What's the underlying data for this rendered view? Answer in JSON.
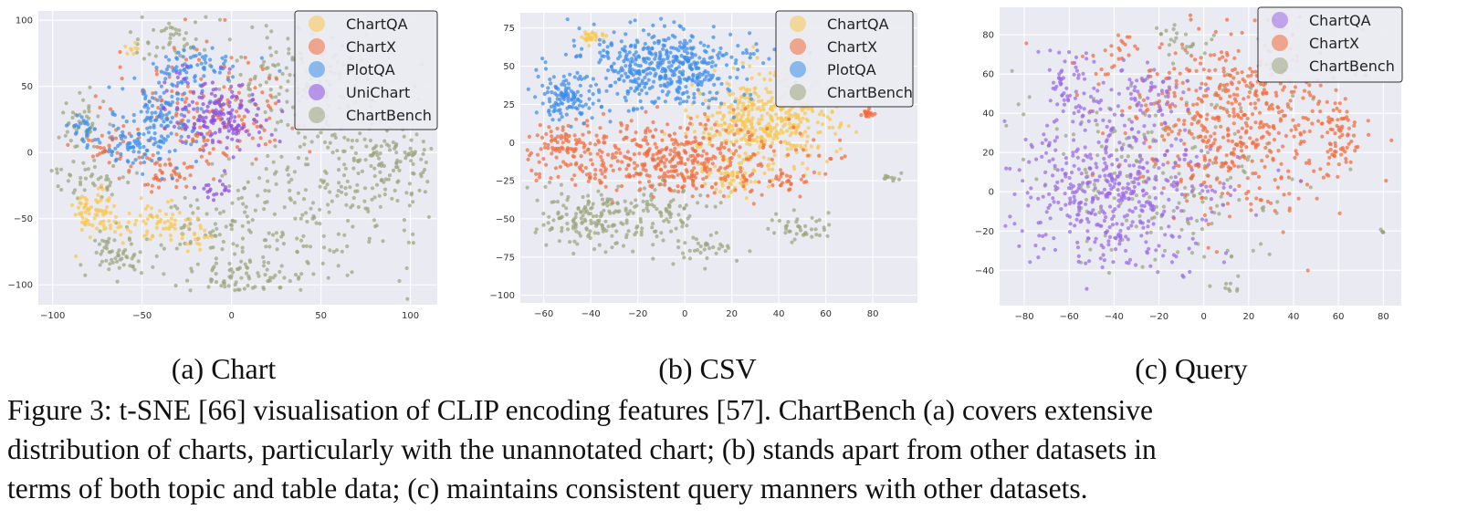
{
  "colors": {
    "ChartQA": "#f9c74f",
    "ChartX": "#f26b3a",
    "PlotQA": "#3b8eea",
    "UniChart": "#8b4fe0",
    "ChartBench": "#9aa57c",
    "ChartQA_query": "#9b6ae6",
    "background": "#eaeaf2"
  },
  "chart_data": [
    {
      "type": "scatter",
      "panel_label": "(a) Chart",
      "xticks": [
        "−100",
        "−50",
        "0",
        "50",
        "100"
      ],
      "yticks": [
        "100",
        "50",
        "0",
        "−50",
        "−100"
      ],
      "xlim": [
        -108,
        115
      ],
      "ylim": [
        -115,
        107
      ],
      "grid": true,
      "legend_placement": "top-right",
      "legend": [
        "ChartQA",
        "ChartX",
        "PlotQA",
        "UniChart",
        "ChartBench"
      ],
      "series": [
        {
          "name": "ChartBench",
          "clusters": [
            [
              60,
              -20,
              35,
              45,
              0.32
            ],
            [
              -5,
              -60,
              30,
              25,
              0.14
            ],
            [
              35,
              60,
              25,
              25,
              0.12
            ],
            [
              -65,
              -75,
              10,
              12,
              0.06
            ],
            [
              -85,
              20,
              8,
              15,
              0.05
            ],
            [
              95,
              -10,
              10,
              15,
              0.05
            ],
            [
              -35,
              85,
              15,
              10,
              0.05
            ],
            [
              10,
              -95,
              20,
              8,
              0.06
            ],
            [
              -80,
              -20,
              15,
              10,
              0.05
            ]
          ],
          "count": 900
        },
        {
          "name": "ChartQA",
          "clusters": [
            [
              -75,
              -45,
              10,
              12,
              0.5
            ],
            [
              -40,
              -52,
              12,
              8,
              0.35
            ],
            [
              -55,
              78,
              3,
              3,
              0.05
            ],
            [
              -20,
              -65,
              6,
              5,
              0.1
            ]
          ],
          "count": 160
        },
        {
          "name": "ChartX",
          "clusters": [
            [
              -15,
              30,
              35,
              30,
              0.75
            ],
            [
              -40,
              -15,
              15,
              10,
              0.15
            ],
            [
              -70,
              5,
              8,
              10,
              0.1
            ]
          ],
          "count": 240
        },
        {
          "name": "PlotQA",
          "clusters": [
            [
              -40,
              25,
              15,
              25,
              0.55
            ],
            [
              -20,
              65,
              15,
              8,
              0.2
            ],
            [
              -80,
              15,
              8,
              8,
              0.1
            ],
            [
              -55,
              5,
              10,
              8,
              0.15
            ]
          ],
          "count": 280
        },
        {
          "name": "UniChart",
          "clusters": [
            [
              -5,
              28,
              18,
              15,
              0.8
            ],
            [
              -25,
              50,
              10,
              10,
              0.1
            ],
            [
              -10,
              -30,
              6,
              5,
              0.1
            ]
          ],
          "count": 190
        }
      ]
    },
    {
      "type": "scatter",
      "panel_label": "(b) CSV",
      "xticks": [
        "−60",
        "−40",
        "−20",
        "0",
        "20",
        "40",
        "60",
        "80"
      ],
      "yticks": [
        "75",
        "50",
        "25",
        "0",
        "−25",
        "−50",
        "−75",
        "−100"
      ],
      "xlim": [
        -70,
        99
      ],
      "ylim": [
        -105,
        85
      ],
      "grid": true,
      "legend_placement": "top-right",
      "legend": [
        "ChartQA",
        "ChartX",
        "PlotQA",
        "ChartBench"
      ],
      "series": [
        {
          "name": "ChartBench",
          "clusters": [
            [
              -40,
              -50,
              15,
              12,
              0.5
            ],
            [
              -10,
              -45,
              12,
              15,
              0.25
            ],
            [
              50,
              -55,
              8,
              6,
              0.12
            ],
            [
              87,
              -23,
              3,
              2,
              0.03
            ],
            [
              10,
              -70,
              10,
              8,
              0.1
            ]
          ],
          "count": 330
        },
        {
          "name": "ChartQA",
          "clusters": [
            [
              35,
              15,
              18,
              20,
              0.85
            ],
            [
              -40,
              70,
              4,
              3,
              0.05
            ],
            [
              20,
              -25,
              10,
              8,
              0.1
            ]
          ],
          "count": 520
        },
        {
          "name": "ChartX",
          "clusters": [
            [
              -10,
              -10,
              35,
              15,
              0.85
            ],
            [
              -55,
              2,
              6,
              6,
              0.08
            ],
            [
              78,
              20,
              2,
              2,
              0.03
            ],
            [
              45,
              -25,
              6,
              4,
              0.04
            ]
          ],
          "count": 560
        },
        {
          "name": "PlotQA",
          "clusters": [
            [
              -10,
              50,
              22,
              16,
              0.8
            ],
            [
              -50,
              30,
              8,
              10,
              0.2
            ]
          ],
          "count": 580
        }
      ]
    },
    {
      "type": "scatter",
      "panel_label": "(c) Query",
      "xticks": [
        "−80",
        "−60",
        "−40",
        "−20",
        "0",
        "20",
        "40",
        "60",
        "80"
      ],
      "yticks": [
        "80",
        "60",
        "40",
        "20",
        "0",
        "−20",
        "−40"
      ],
      "xlim": [
        -91,
        88
      ],
      "ylim": [
        -58,
        94
      ],
      "grid": true,
      "legend_placement": "top-right",
      "legend": [
        "ChartQA",
        "ChartX",
        "ChartBench"
      ],
      "series": [
        {
          "name": "ChartBench",
          "clusters": [
            [
              -20,
              10,
              40,
              30,
              0.85
            ],
            [
              -10,
              78,
              8,
              6,
              0.1
            ],
            [
              13,
              -50,
              2,
              2,
              0.03
            ],
            [
              80,
              -20,
              1,
              1,
              0.02
            ]
          ],
          "count": 240
        },
        {
          "name": "ChartX",
          "clusters": [
            [
              15,
              35,
              30,
              28,
              0.88
            ],
            [
              60,
              30,
              6,
              10,
              0.08
            ],
            [
              -40,
              70,
              10,
              6,
              0.04
            ]
          ],
          "count": 620
        },
        {
          "name": "ChartQA",
          "clusters": [
            [
              -40,
              0,
              28,
              25,
              0.8
            ],
            [
              -60,
              55,
              8,
              12,
              0.1
            ],
            [
              -25,
              50,
              15,
              10,
              0.1
            ]
          ],
          "count": 620
        }
      ]
    }
  ],
  "captions": {
    "a": "(a) Chart",
    "b": "(b) CSV",
    "c": "(c) Query"
  },
  "figure_caption": {
    "line1": "Figure 3: t-SNE [66] visualisation of CLIP encoding features [57]. ChartBench (a) covers extensive",
    "line2": "distribution of charts, particularly with the unannotated chart; (b) stands apart from other datasets in",
    "line3": "terms of both topic and table data; (c) maintains consistent query manners with other datasets."
  }
}
